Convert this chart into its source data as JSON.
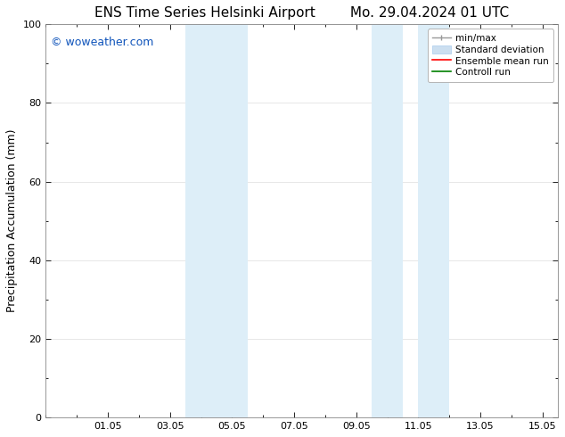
{
  "title_left": "ENS Time Series Helsinki Airport",
  "title_right": "Mo. 29.04.2024 01 UTC",
  "ylabel": "Precipitation Accumulation (mm)",
  "ylim": [
    0,
    100
  ],
  "x_tick_labels": [
    "01.05",
    "03.05",
    "05.05",
    "07.05",
    "09.05",
    "11.05",
    "13.05",
    "15.05"
  ],
  "x_tick_positions": [
    2,
    4,
    6,
    8,
    10,
    12,
    14,
    16
  ],
  "xlim": [
    0,
    16.5
  ],
  "shaded_regions": [
    {
      "x_start": 4.5,
      "x_end": 5.5,
      "color": "#ddeef8"
    },
    {
      "x_start": 5.5,
      "x_end": 6.5,
      "color": "#ddeef8"
    },
    {
      "x_start": 10.5,
      "x_end": 11.5,
      "color": "#ddeef8"
    },
    {
      "x_start": 12.0,
      "x_end": 13.0,
      "color": "#ddeef8"
    }
  ],
  "background_color": "#ffffff",
  "plot_bg_color": "#ffffff",
  "watermark_text": "© woweather.com",
  "watermark_color": "#1155bb",
  "watermark_fontsize": 9,
  "legend_labels": [
    "min/max",
    "Standard deviation",
    "Ensemble mean run",
    "Controll run"
  ],
  "legend_colors_line": [
    "#aaaaaa",
    "#ccdff0",
    "#ff0000",
    "#008000"
  ],
  "grid_color": "#dddddd",
  "title_fontsize": 11,
  "tick_fontsize": 8,
  "ylabel_fontsize": 9
}
